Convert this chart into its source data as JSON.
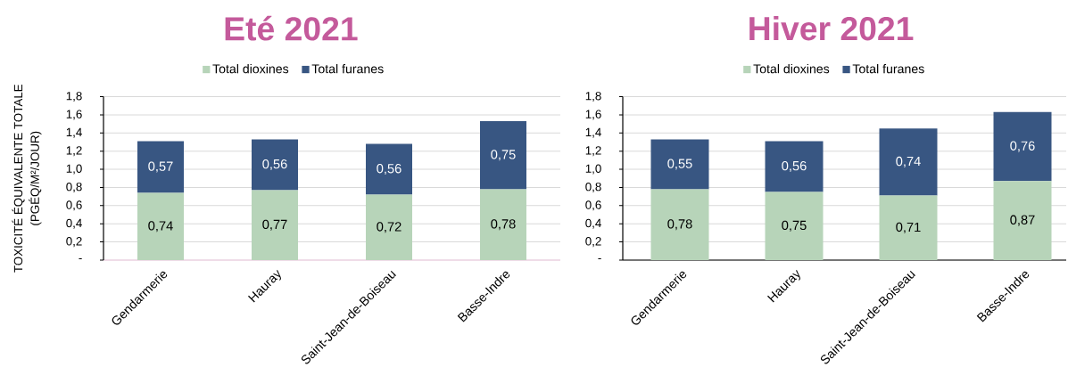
{
  "chart_data": [
    {
      "type": "bar",
      "stacked": true,
      "title": "Eté 2021",
      "ylabel": "TOXICITÉ ÉQUIVALENTE TOTALE (PGÉQ/M²/JOUR)",
      "categories": [
        "Gendarmerie",
        "Hauray",
        "Saint-Jean-de-Boiseau",
        "Basse-Indre"
      ],
      "series": [
        {
          "name": "Total dioxines",
          "color": "#b7d4b9",
          "values": [
            0.74,
            0.77,
            0.72,
            0.78
          ],
          "value_labels": [
            "0,74",
            "0,77",
            "0,72",
            "0,78"
          ]
        },
        {
          "name": "Total furanes",
          "color": "#385682",
          "values": [
            0.57,
            0.56,
            0.56,
            0.75
          ],
          "value_labels": [
            "0,57",
            "0,56",
            "0,56",
            "0,75"
          ]
        }
      ],
      "ylim": [
        0,
        1.8
      ],
      "yticks": [
        {
          "value": 0,
          "label": "-"
        },
        {
          "value": 0.2,
          "label": "0,2"
        },
        {
          "value": 0.4,
          "label": "0,4"
        },
        {
          "value": 0.6,
          "label": "0,6"
        },
        {
          "value": 0.8,
          "label": "0,8"
        },
        {
          "value": 1.0,
          "label": "1,0"
        },
        {
          "value": 1.2,
          "label": "1,2"
        },
        {
          "value": 1.4,
          "label": "1,4"
        },
        {
          "value": 1.6,
          "label": "1,6"
        },
        {
          "value": 1.8,
          "label": "1,8"
        }
      ],
      "grid": "y",
      "legend": "top"
    },
    {
      "type": "bar",
      "stacked": true,
      "title": "Hiver 2021",
      "categories": [
        "Gendarmerie",
        "Hauray",
        "Saint-Jean-de-Boiseau",
        "Basse-Indre"
      ],
      "series": [
        {
          "name": "Total dioxines",
          "color": "#b7d4b9",
          "values": [
            0.78,
            0.75,
            0.71,
            0.87
          ],
          "value_labels": [
            "0,78",
            "0,75",
            "0,71",
            "0,87"
          ]
        },
        {
          "name": "Total furanes",
          "color": "#385682",
          "values": [
            0.55,
            0.56,
            0.74,
            0.76
          ],
          "value_labels": [
            "0,55",
            "0,56",
            "0,74",
            "0,76"
          ]
        }
      ],
      "ylim": [
        0,
        1.8
      ],
      "yticks": [
        {
          "value": 0,
          "label": "-"
        },
        {
          "value": 0.2,
          "label": "0,2"
        },
        {
          "value": 0.4,
          "label": "0,4"
        },
        {
          "value": 0.6,
          "label": "0,6"
        },
        {
          "value": 0.8,
          "label": "0,8"
        },
        {
          "value": 1.0,
          "label": "1,0"
        },
        {
          "value": 1.2,
          "label": "1,2"
        },
        {
          "value": 1.4,
          "label": "1,4"
        },
        {
          "value": 1.6,
          "label": "1,6"
        },
        {
          "value": 1.8,
          "label": "1,8"
        }
      ],
      "grid": "y",
      "legend": "top"
    }
  ]
}
